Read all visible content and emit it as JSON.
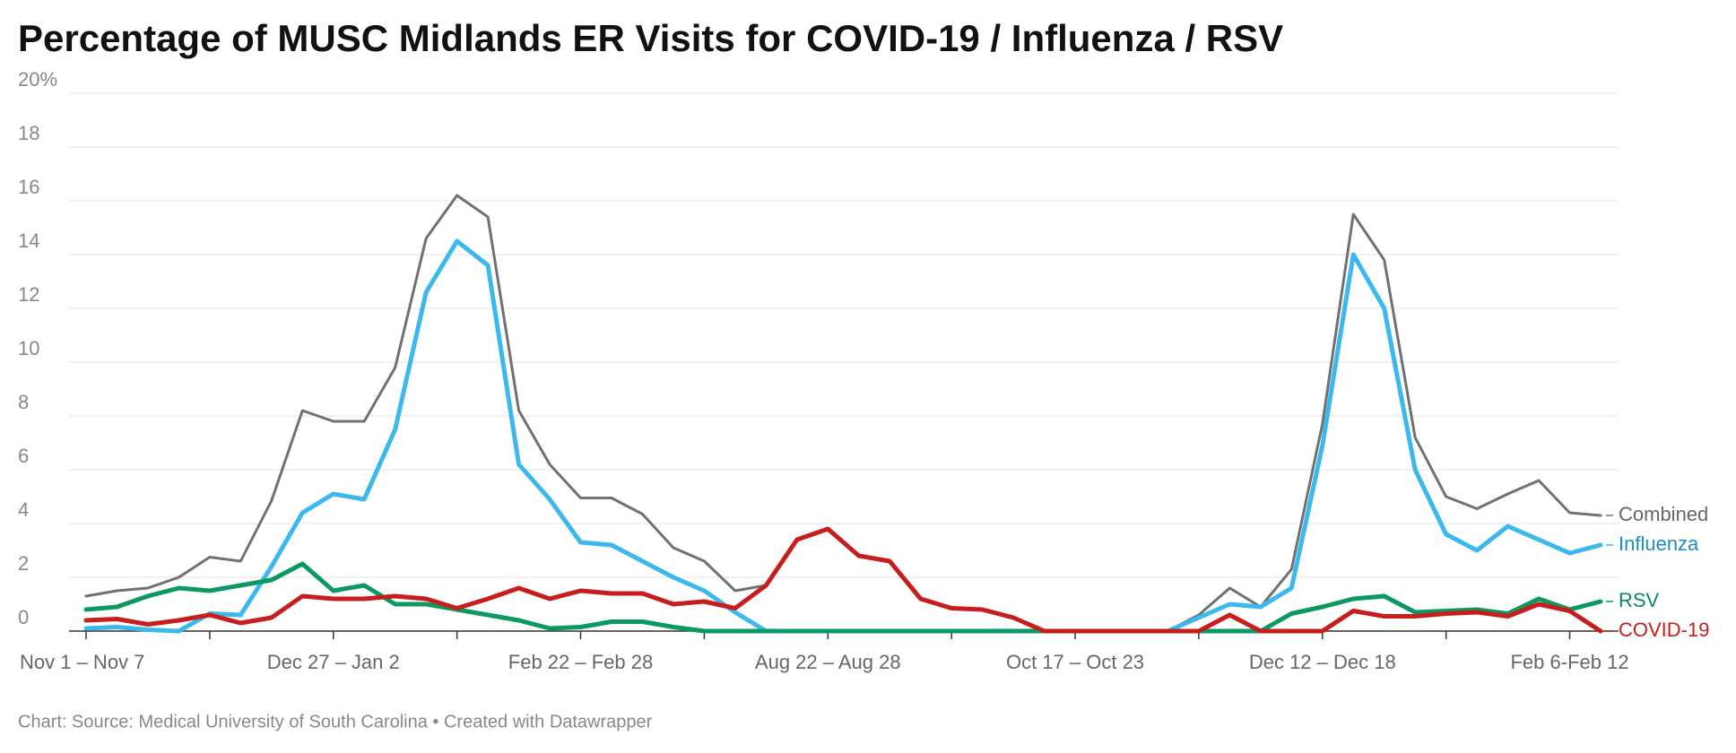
{
  "chart_data": {
    "type": "line",
    "title": "Percentage of MUSC Midlands ER Visits for COVID-19 / Influenza / RSV",
    "source": "Chart: Source: Medical University of South Carolina • Created with Datawrapper",
    "categories": [
      "Nov 1 – Nov 7",
      null,
      null,
      null,
      null,
      null,
      null,
      null,
      "Dec 27 – Jan 2",
      null,
      null,
      null,
      null,
      null,
      null,
      null,
      "Feb 22 – Feb 28",
      null,
      null,
      null,
      null,
      null,
      null,
      null,
      "Aug 22 – Aug 28",
      null,
      null,
      null,
      null,
      null,
      null,
      null,
      "Oct 17 – Oct 23",
      null,
      null,
      null,
      null,
      null,
      null,
      null,
      "Dec 12 – Dec 18",
      null,
      null,
      null,
      null,
      null,
      null,
      null,
      "Feb 6-Feb 12",
      null
    ],
    "ylim": [
      0,
      20
    ],
    "yticks": [
      0,
      2,
      4,
      6,
      8,
      10,
      12,
      14,
      16,
      18,
      {
        "value": 20,
        "label": "20%"
      }
    ],
    "grid": true,
    "series": [
      {
        "name": "Combined",
        "color": "#717171",
        "label_color": "#666666",
        "values": [
          1.3,
          1.5,
          1.6,
          2.0,
          2.75,
          2.6,
          4.85,
          8.2,
          7.8,
          7.8,
          9.8,
          14.6,
          16.2,
          15.4,
          8.2,
          6.2,
          4.95,
          4.95,
          4.35,
          3.1,
          2.6,
          1.5,
          1.7,
          3.4,
          3.8,
          2.8,
          2.6,
          1.2,
          0.85,
          0.8,
          0.5,
          0,
          0,
          0,
          0,
          0,
          0.6,
          1.6,
          0.9,
          2.3,
          7.7,
          15.5,
          13.8,
          7.2,
          5.0,
          4.55,
          5.1,
          5.6,
          4.4,
          4.3
        ]
      },
      {
        "name": "Influenza",
        "color": "#3bb8ee",
        "label_color": "#1b8ec6",
        "values": [
          0.1,
          0.15,
          0.05,
          0,
          0.65,
          0.6,
          2.4,
          4.4,
          5.1,
          4.9,
          7.5,
          12.6,
          14.5,
          13.6,
          6.2,
          4.9,
          3.3,
          3.2,
          2.6,
          2.0,
          1.5,
          0.7,
          0,
          0,
          0,
          0,
          0,
          0,
          0,
          0,
          0,
          0,
          0,
          0,
          0,
          0,
          0.5,
          1.0,
          0.9,
          1.6,
          6.9,
          14.0,
          12.0,
          6.0,
          3.6,
          3.0,
          3.9,
          3.4,
          2.9,
          3.2
        ]
      },
      {
        "name": "RSV",
        "color": "#0a9a61",
        "label_color": "#0a8a57",
        "values": [
          0.8,
          0.9,
          1.3,
          1.6,
          1.5,
          1.7,
          1.9,
          2.5,
          1.5,
          1.7,
          1.0,
          1.0,
          0.8,
          0.6,
          0.4,
          0.1,
          0.15,
          0.35,
          0.35,
          0.15,
          0,
          0,
          0,
          0,
          0,
          0,
          0,
          0,
          0,
          0,
          0,
          0,
          0,
          0,
          0,
          0,
          0,
          0,
          0,
          0.65,
          0.9,
          1.2,
          1.3,
          0.7,
          0.75,
          0.8,
          0.65,
          1.2,
          0.8,
          1.1
        ]
      },
      {
        "name": "COVID-19",
        "color": "#c71e1d",
        "label_color": "#c71e1d",
        "values": [
          0.4,
          0.45,
          0.25,
          0.4,
          0.6,
          0.3,
          0.5,
          1.3,
          1.2,
          1.2,
          1.3,
          1.2,
          0.85,
          1.2,
          1.6,
          1.2,
          1.5,
          1.4,
          1.4,
          1.0,
          1.1,
          0.85,
          1.7,
          3.4,
          3.8,
          2.8,
          2.6,
          1.2,
          0.85,
          0.8,
          0.5,
          0,
          0,
          0,
          0,
          0,
          0,
          0.6,
          0,
          0,
          0,
          0.75,
          0.55,
          0.55,
          0.65,
          0.7,
          0.55,
          1.0,
          0.75,
          0
        ]
      }
    ]
  }
}
